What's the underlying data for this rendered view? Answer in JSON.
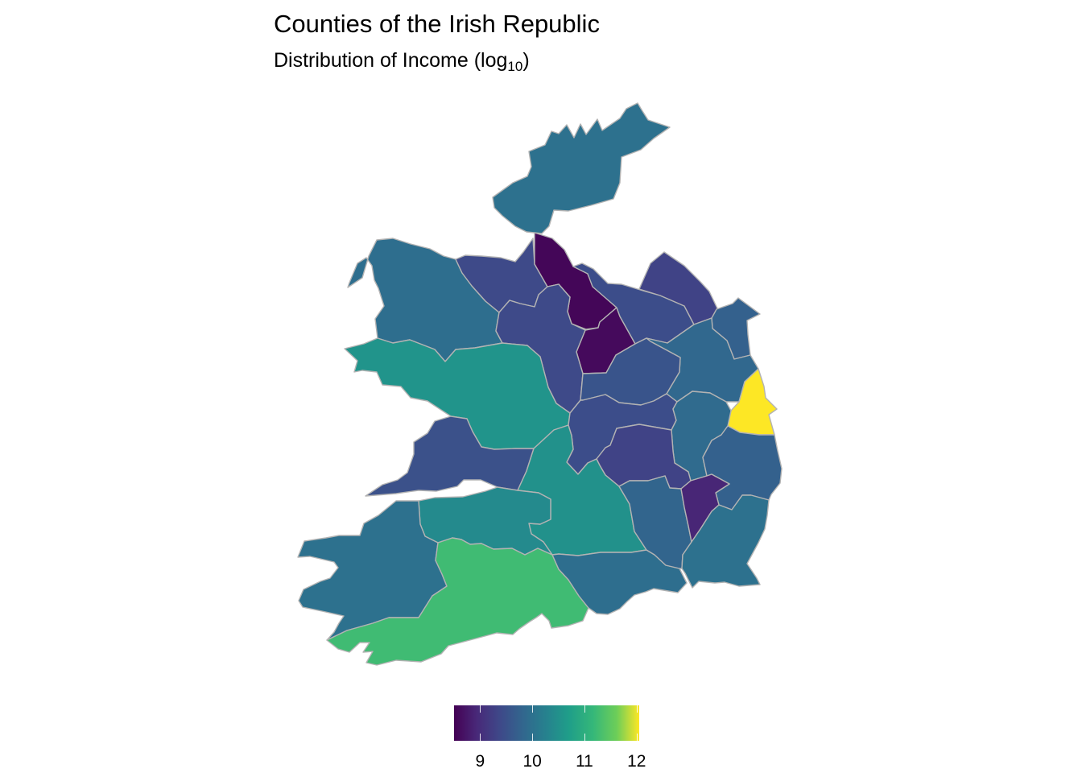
{
  "title": "Counties of the Irish Republic",
  "subtitle": {
    "main": "Distribution of Income (log",
    "sub": "10",
    "close": ")"
  },
  "legend": {
    "min": 8.5,
    "max": 12.05,
    "ticks": [
      {
        "value": 9,
        "label": "9"
      },
      {
        "value": 10,
        "label": "10"
      },
      {
        "value": 11,
        "label": "11"
      },
      {
        "value": 12,
        "label": "12"
      }
    ],
    "colors": [
      "#440154",
      "#3b528b",
      "#21908c",
      "#5dc863",
      "#fde725"
    ]
  },
  "chart_data": {
    "type": "choropleth",
    "title": "Counties of the Irish Republic",
    "subtitle": "Distribution of Income (log10)",
    "fill_scale": "viridis",
    "fill_range": [
      8.5,
      12.05
    ],
    "regions_value_estimates": {
      "donegal": 10.0,
      "mayo": 9.95,
      "sligo": 9.4,
      "leitrim": 8.55,
      "longford": 8.6,
      "roscommon": 9.4,
      "cavan": 9.45,
      "monaghan": 9.3,
      "louth": 9.75,
      "meath": 9.85,
      "westmeath": 9.55,
      "dublin": 12.05,
      "galway": 10.55,
      "offaly": 9.45,
      "laois": 9.3,
      "kildare": 9.9,
      "wicklow": 9.75,
      "clare": 9.5,
      "tipperary": 10.5,
      "limerick": 10.4,
      "kerry": 10.0,
      "cork": 11.25,
      "waterford": 9.95,
      "kilkenny": 9.8,
      "carlow": 8.9,
      "wexford": 10.0
    }
  }
}
